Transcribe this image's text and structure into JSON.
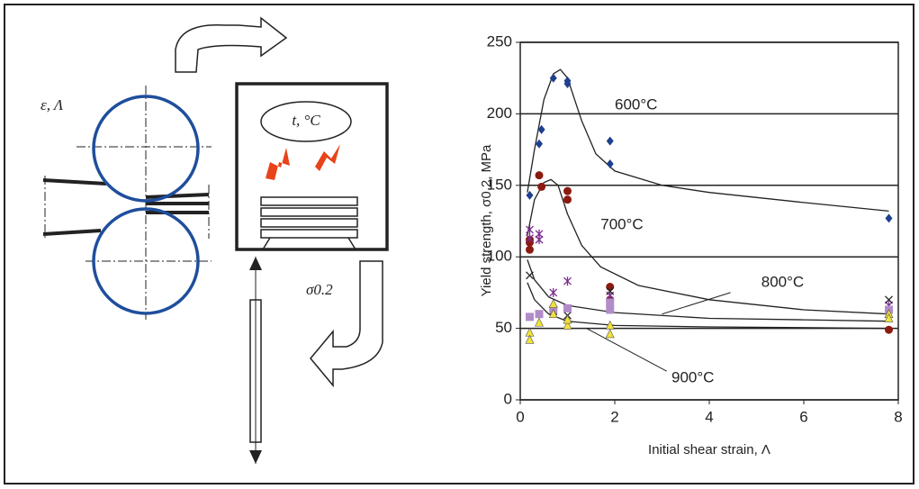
{
  "diagram": {
    "strain_label": "ε, Λ",
    "temperature_label": "t, °C",
    "stress_label": "σ0.2"
  },
  "chart_data": {
    "type": "scatter",
    "xlabel": "Initial shear strain, Λ",
    "ylabel": "Yield strength, σ0.2, MPa",
    "xlim": [
      0,
      8
    ],
    "ylim": [
      0,
      250
    ],
    "xticks": [
      0,
      2,
      4,
      6,
      8
    ],
    "yticks": [
      0,
      50,
      100,
      150,
      200,
      250
    ],
    "grid": true,
    "series": [
      {
        "marker": "diamond",
        "color": "#1f3f8f",
        "x": [
          0.2,
          0.4,
          0.45,
          0.7,
          1.0,
          1.0,
          1.9,
          1.9,
          7.8
        ],
        "y": [
          143,
          179,
          189,
          225,
          221,
          223,
          165,
          181,
          127
        ]
      },
      {
        "marker": "circle",
        "color": "#8b1a10",
        "x": [
          0.2,
          0.2,
          0.2,
          0.4,
          0.45,
          1.0,
          1.0,
          1.9,
          1.9,
          7.8
        ],
        "y": [
          105,
          110,
          112,
          157,
          149,
          140,
          146,
          79,
          70,
          49
        ]
      },
      {
        "marker": "asterisk",
        "color": "#7b2c8f",
        "x": [
          0.2,
          0.2,
          0.4,
          0.4,
          0.7,
          1.0,
          1.9,
          7.8
        ],
        "y": [
          119,
          113,
          116,
          112,
          75,
          83,
          73,
          66
        ]
      },
      {
        "marker": "cross",
        "color": "#222222",
        "x": [
          0.2,
          0.7,
          1.0,
          1.9,
          7.8
        ],
        "y": [
          87,
          62,
          59,
          76,
          70
        ]
      },
      {
        "marker": "square",
        "color": "#b28cc9",
        "x": [
          0.2,
          0.4,
          0.7,
          1.0,
          1.9,
          1.9,
          7.8
        ],
        "y": [
          58,
          60,
          63,
          64,
          68,
          63,
          63
        ]
      },
      {
        "marker": "triangle",
        "color": "#f2e23a",
        "x": [
          0.2,
          0.2,
          0.4,
          0.7,
          0.7,
          1.0,
          1.0,
          1.9,
          1.9,
          7.8,
          7.8
        ],
        "y": [
          47,
          42,
          54,
          67,
          60,
          52,
          56,
          52,
          46,
          60,
          57
        ]
      }
    ],
    "curves": [
      {
        "label": "600°C",
        "x": [
          0.15,
          0.3,
          0.5,
          0.7,
          0.85,
          1.0,
          1.3,
          1.6,
          2,
          3,
          4,
          6,
          7.8
        ],
        "y": [
          145,
          175,
          210,
          228,
          231,
          225,
          195,
          172,
          160,
          150,
          145,
          138,
          132
        ]
      },
      {
        "label": "700°C",
        "x": [
          0.15,
          0.3,
          0.5,
          0.65,
          0.8,
          1.0,
          1.3,
          1.7,
          2.5,
          4,
          6,
          7.8
        ],
        "y": [
          115,
          140,
          152,
          154,
          150,
          130,
          108,
          93,
          80,
          70,
          63,
          60
        ]
      },
      {
        "label": "800°C",
        "x": [
          0.15,
          0.3,
          0.6,
          1,
          2,
          4,
          6,
          7.8
        ],
        "y": [
          98,
          84,
          72,
          66,
          61,
          57,
          56,
          55
        ]
      },
      {
        "label": "900°C",
        "x": [
          0.15,
          0.3,
          0.6,
          1,
          2,
          4,
          7.8
        ],
        "y": [
          82,
          70,
          60,
          55,
          52,
          51,
          50
        ]
      }
    ]
  }
}
